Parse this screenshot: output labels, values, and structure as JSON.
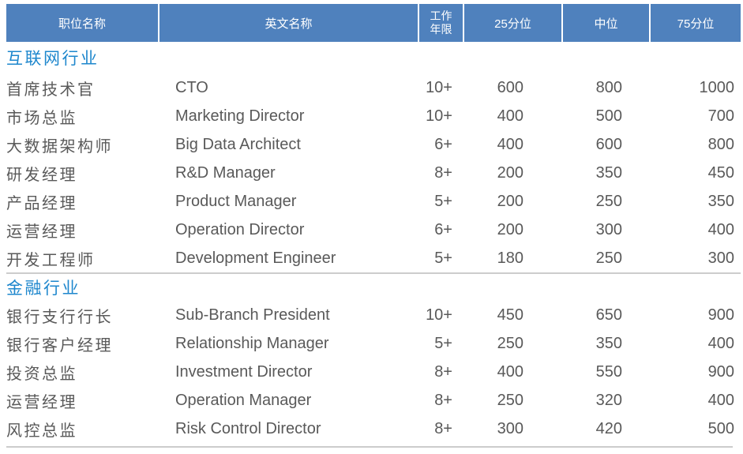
{
  "colors": {
    "header_bg": "#4f81bd",
    "header_text": "#ffffff",
    "section_title_text": "#1e87cd",
    "body_text": "#595959",
    "divider": "#cccccc"
  },
  "table": {
    "header": {
      "position_cn": "职位名称",
      "position_en": "英文名称",
      "years_line1": "工作",
      "years_line2": "年限",
      "p25": "25分位",
      "median": "中位",
      "p75": "75分位"
    },
    "sections": [
      {
        "title": "互联网行业",
        "rows": [
          {
            "cn": "首席技术官",
            "en": "CTO",
            "years": "10+",
            "p25": "600",
            "median": "800",
            "p75": "1000"
          },
          {
            "cn": "市场总监",
            "en": "Marketing Director",
            "years": "10+",
            "p25": "400",
            "median": "500",
            "p75": "700"
          },
          {
            "cn": "大数据架构师",
            "en": "Big Data Architect",
            "years": "6+",
            "p25": "400",
            "median": "600",
            "p75": "800"
          },
          {
            "cn": "研发经理",
            "en": "R&D Manager",
            "years": "8+",
            "p25": "200",
            "median": "350",
            "p75": "450"
          },
          {
            "cn": "产品经理",
            "en": "Product Manager",
            "years": "5+",
            "p25": "200",
            "median": "250",
            "p75": "350"
          },
          {
            "cn": "运营经理",
            "en": "Operation Director",
            "years": "6+",
            "p25": "200",
            "median": "300",
            "p75": "400"
          },
          {
            "cn": "开发工程师",
            "en": "Development Engineer",
            "years": "5+",
            "p25": "180",
            "median": "250",
            "p75": "300"
          }
        ]
      },
      {
        "title": "金融行业",
        "rows": [
          {
            "cn": "银行支行行长",
            "en": "Sub-Branch President",
            "years": "10+",
            "p25": "450",
            "median": "650",
            "p75": "900"
          },
          {
            "cn": "银行客户经理",
            "en": "Relationship Manager",
            "years": "5+",
            "p25": "250",
            "median": "350",
            "p75": "400"
          },
          {
            "cn": "投资总监",
            "en": "Investment Director",
            "years": "8+",
            "p25": "400",
            "median": "550",
            "p75": "900"
          },
          {
            "cn": "运营经理",
            "en": "Operation Manager",
            "years": "8+",
            "p25": "250",
            "median": "320",
            "p75": "400"
          },
          {
            "cn": "风控总监",
            "en": "Risk Control Director",
            "years": "8+",
            "p25": "300",
            "median": "420",
            "p75": "500"
          }
        ]
      }
    ]
  }
}
